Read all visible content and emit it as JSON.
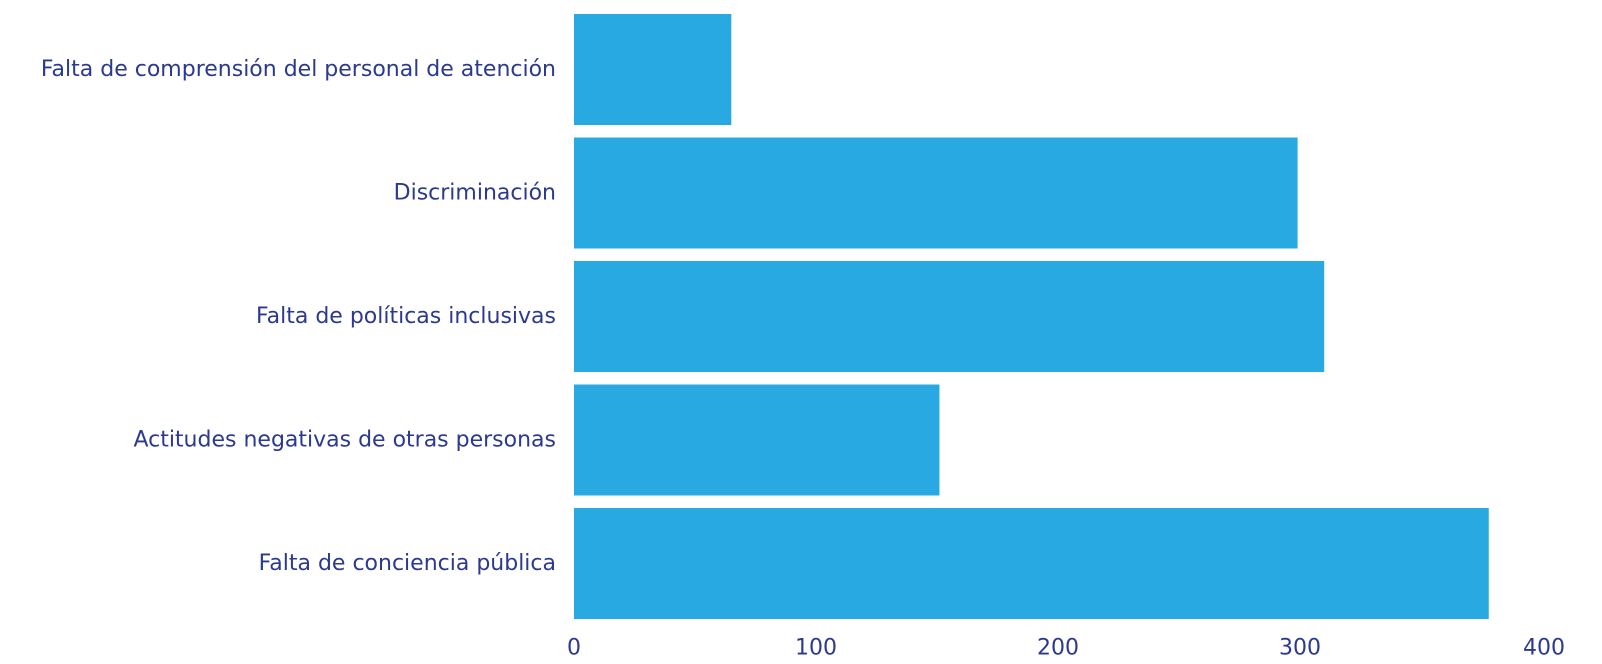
{
  "chart_data": {
    "type": "bar",
    "orientation": "horizontal",
    "categories": [
      "Falta de comprensión del personal de atención",
      "Discriminación",
      "Falta de políticas inclusivas",
      "Actitudes negativas de otras personas",
      "Falta de conciencia pública"
    ],
    "values": [
      65,
      299,
      310,
      151,
      378
    ],
    "xlim": [
      0,
      400
    ],
    "xticks": [
      "0",
      "100",
      "200",
      "300",
      "400"
    ],
    "grid": false,
    "legend": "none",
    "colors": {
      "bar": "#29a9e1",
      "text": "#2b3990"
    }
  }
}
